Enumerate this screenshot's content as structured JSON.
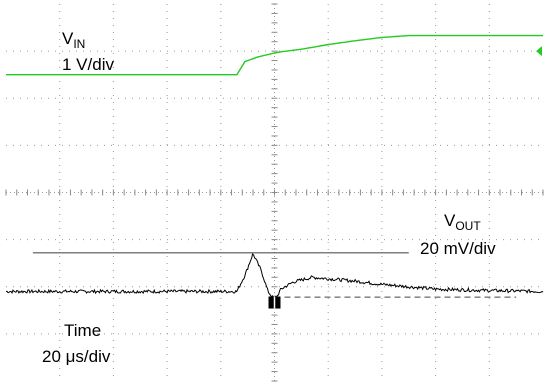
{
  "channels": {
    "vin": {
      "name": "V",
      "subscript": "IN",
      "scale": "1 V/div",
      "color": "#22cc22"
    },
    "vout": {
      "name": "V",
      "subscript": "OUT",
      "scale": "20 mV/div",
      "color": "#000000"
    }
  },
  "timebase": {
    "name": "Time",
    "scale": "20 μs/div"
  },
  "chart_data": {
    "type": "line",
    "xlabel": "",
    "ylabel": "",
    "grid": true,
    "x_units": "divisions",
    "x_range": [
      0,
      10
    ],
    "y_units": "divisions",
    "y_range": [
      0,
      8
    ],
    "series": [
      {
        "name": "VIN",
        "x": [
          0,
          4.3,
          4.45,
          4.7,
          5.0,
          5.15,
          5.5,
          6.0,
          6.5,
          7.0,
          7.5,
          10.0
        ],
        "y": [
          6.5,
          6.5,
          6.78,
          6.88,
          6.96,
          6.99,
          7.04,
          7.14,
          7.22,
          7.29,
          7.33,
          7.33
        ]
      },
      {
        "name": "VOUT",
        "x": [
          0,
          1,
          2,
          3,
          4,
          4.3,
          4.45,
          4.6,
          4.75,
          4.88,
          4.98,
          5.05,
          5.12,
          5.35,
          5.7,
          6.0,
          6.5,
          7.0,
          7.5,
          8.0,
          9.0,
          10.0
        ],
        "y": [
          1.9,
          1.9,
          1.9,
          1.9,
          1.9,
          1.9,
          2.25,
          2.7,
          2.35,
          1.9,
          1.75,
          1.8,
          1.95,
          2.1,
          2.2,
          2.17,
          2.12,
          2.05,
          2.0,
          1.95,
          1.92,
          1.9
        ]
      }
    ],
    "markers": [
      {
        "label": "trigger",
        "x": 5.0,
        "y": 1.75,
        "color": "#000000"
      },
      {
        "label": "ch1-ref",
        "x": 10.0,
        "y": 7.0,
        "color": "#22cc22"
      }
    ]
  }
}
